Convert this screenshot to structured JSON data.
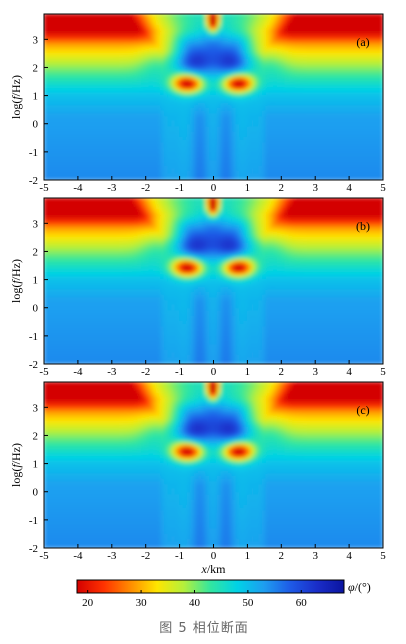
{
  "chart_data": {
    "type": "heatmap",
    "panels": [
      {
        "label": "(a)",
        "ylabel_parts": [
          "log(",
          "f",
          "/Hz)"
        ]
      },
      {
        "label": "(b)",
        "ylabel_parts": [
          "log(",
          "f",
          "/Hz)"
        ]
      },
      {
        "label": "(c)",
        "ylabel_parts": [
          "log(",
          "f",
          "/Hz)"
        ]
      }
    ],
    "x": {
      "range": [
        -5,
        5
      ],
      "ticks": [
        -5,
        -4,
        -3,
        -2,
        -1,
        0,
        1,
        2,
        3,
        4,
        5
      ],
      "label_parts": [
        "x",
        "/km"
      ]
    },
    "y": {
      "range": [
        -2,
        3.9
      ],
      "ticks": [
        -2,
        -1,
        0,
        1,
        2,
        3
      ]
    },
    "colorbar": {
      "range": [
        18,
        68
      ],
      "ticks": [
        20,
        30,
        40,
        50,
        60
      ],
      "label_parts": [
        "φ",
        "/(°)"
      ],
      "colormap": [
        "#d40000",
        "#ff3200",
        "#ff8c00",
        "#ffe600",
        "#b4f03c",
        "#32e6a0",
        "#00d2e6",
        "#1e9ef0",
        "#1e5ae6",
        "#1a2dc8",
        "#0a14a0"
      ]
    }
  },
  "caption": "图 5   相位断面"
}
